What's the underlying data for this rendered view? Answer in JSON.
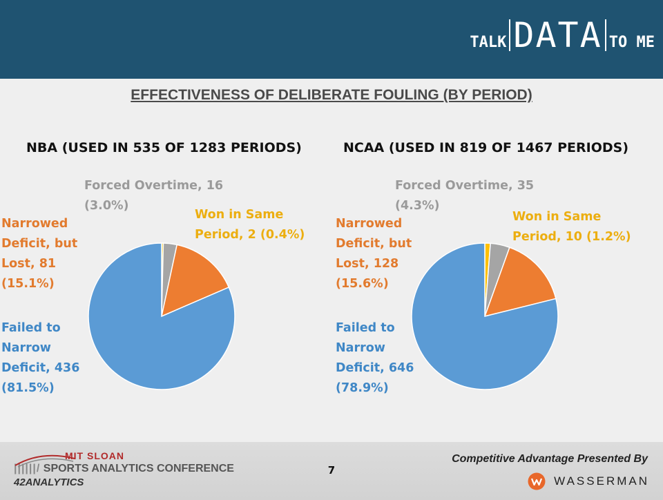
{
  "brand": {
    "talk": "TALK",
    "data": "DATA",
    "to_me": "TO ME"
  },
  "slide_title": "EFFECTIVENESS OF DELIBERATE FOULING (BY PERIOD)",
  "colors": {
    "failed": "#5b9bd5",
    "narrowed": "#ed7d31",
    "overtime": "#a5a5a5",
    "won": "#ffc000",
    "header": "#1f5371"
  },
  "chart_data": [
    {
      "type": "pie",
      "title": "NBA (USED IN 535 OF 1283 PERIODS)",
      "slices": [
        {
          "name": "Failed to Narrow Deficit",
          "value": 436,
          "percent": "81.5%",
          "label_lines": [
            "Failed to",
            "Narrow",
            "Deficit, 436",
            "(81.5%)"
          ]
        },
        {
          "name": "Narrowed Deficit, but Lost",
          "value": 81,
          "percent": "15.1%",
          "label_lines": [
            "Narrowed",
            "Deficit, but",
            "Lost, 81",
            "(15.1%)"
          ]
        },
        {
          "name": "Forced Overtime",
          "value": 16,
          "percent": "3.0%",
          "label_lines": [
            "Forced Overtime, 16",
            "(3.0%)"
          ]
        },
        {
          "name": "Won in Same Period",
          "value": 2,
          "percent": "0.4%",
          "label_lines": [
            "Won in Same",
            "Period, 2 (0.4%)"
          ]
        }
      ]
    },
    {
      "type": "pie",
      "title": "NCAA (USED IN 819 OF 1467 PERIODS)",
      "slices": [
        {
          "name": "Failed to Narrow Deficit",
          "value": 646,
          "percent": "78.9%",
          "label_lines": [
            "Failed to",
            "Narrow",
            "Deficit, 646",
            "(78.9%)"
          ]
        },
        {
          "name": "Narrowed Deficit, but Lost",
          "value": 128,
          "percent": "15.6%",
          "label_lines": [
            "Narrowed",
            "Deficit, but",
            "Lost, 128",
            "(15.6%)"
          ]
        },
        {
          "name": "Forced Overtime",
          "value": 35,
          "percent": "4.3%",
          "label_lines": [
            "Forced Overtime, 35",
            "(4.3%)"
          ]
        },
        {
          "name": "Won in Same Period",
          "value": 10,
          "percent": "1.2%",
          "label_lines": [
            "Won in Same",
            "Period, 10 (1.2%)"
          ]
        }
      ]
    }
  ],
  "footer": {
    "page_number": "7",
    "conference_line1": "MIT SLOAN",
    "conference_bars": "||||||/",
    "conference_line2": "SPORTS ANALYTICS CONFERENCE",
    "analytics_logo": "42ANALYTICS",
    "sponsor_text": "Competitive Advantage Presented By",
    "sponsor_name": "WASSERMAN"
  }
}
